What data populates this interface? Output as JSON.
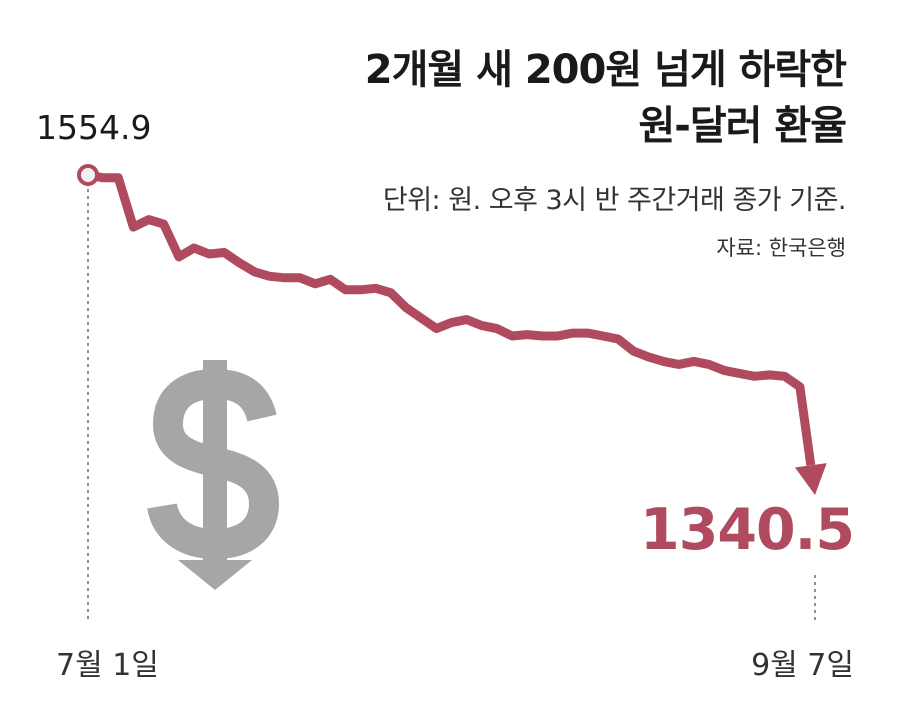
{
  "title_line1": "2개월 새 200원 넘게 하락한",
  "title_line2": "원-달러 환율",
  "unit_note": "단위: 원. 오후 3시 반 주간거래 종가 기준.",
  "source": "자료: 한국은행",
  "icon": "dollar-down-arrow-icon",
  "colors": {
    "line": "#b04a5f",
    "icon": "#a6a6a6",
    "guide": "#555555"
  },
  "chart_data": {
    "type": "line",
    "title": "2개월 새 200원 넘게 하락한 원-달러 환율",
    "ylabel": "",
    "xlabel": "",
    "x_tick_labels": [
      "7월 1일",
      "9월 7일"
    ],
    "start_label": "1554.9",
    "end_label": "1340.5",
    "ylim": [
      1320,
      1570
    ],
    "series": [
      {
        "values": [
          1554.9,
          1553,
          1553,
          1520,
          1525,
          1522,
          1500,
          1506,
          1502,
          1503,
          1496,
          1490,
          1487,
          1486,
          1486,
          1482,
          1485,
          1478,
          1478,
          1479,
          1476,
          1466,
          1459,
          1452,
          1456,
          1458,
          1454,
          1452,
          1447,
          1448,
          1447,
          1447,
          1449,
          1449,
          1447,
          1445,
          1437,
          1433,
          1430,
          1428,
          1430,
          1428,
          1424,
          1422,
          1420,
          1421,
          1420,
          1413,
          1340.5
        ]
      }
    ]
  }
}
